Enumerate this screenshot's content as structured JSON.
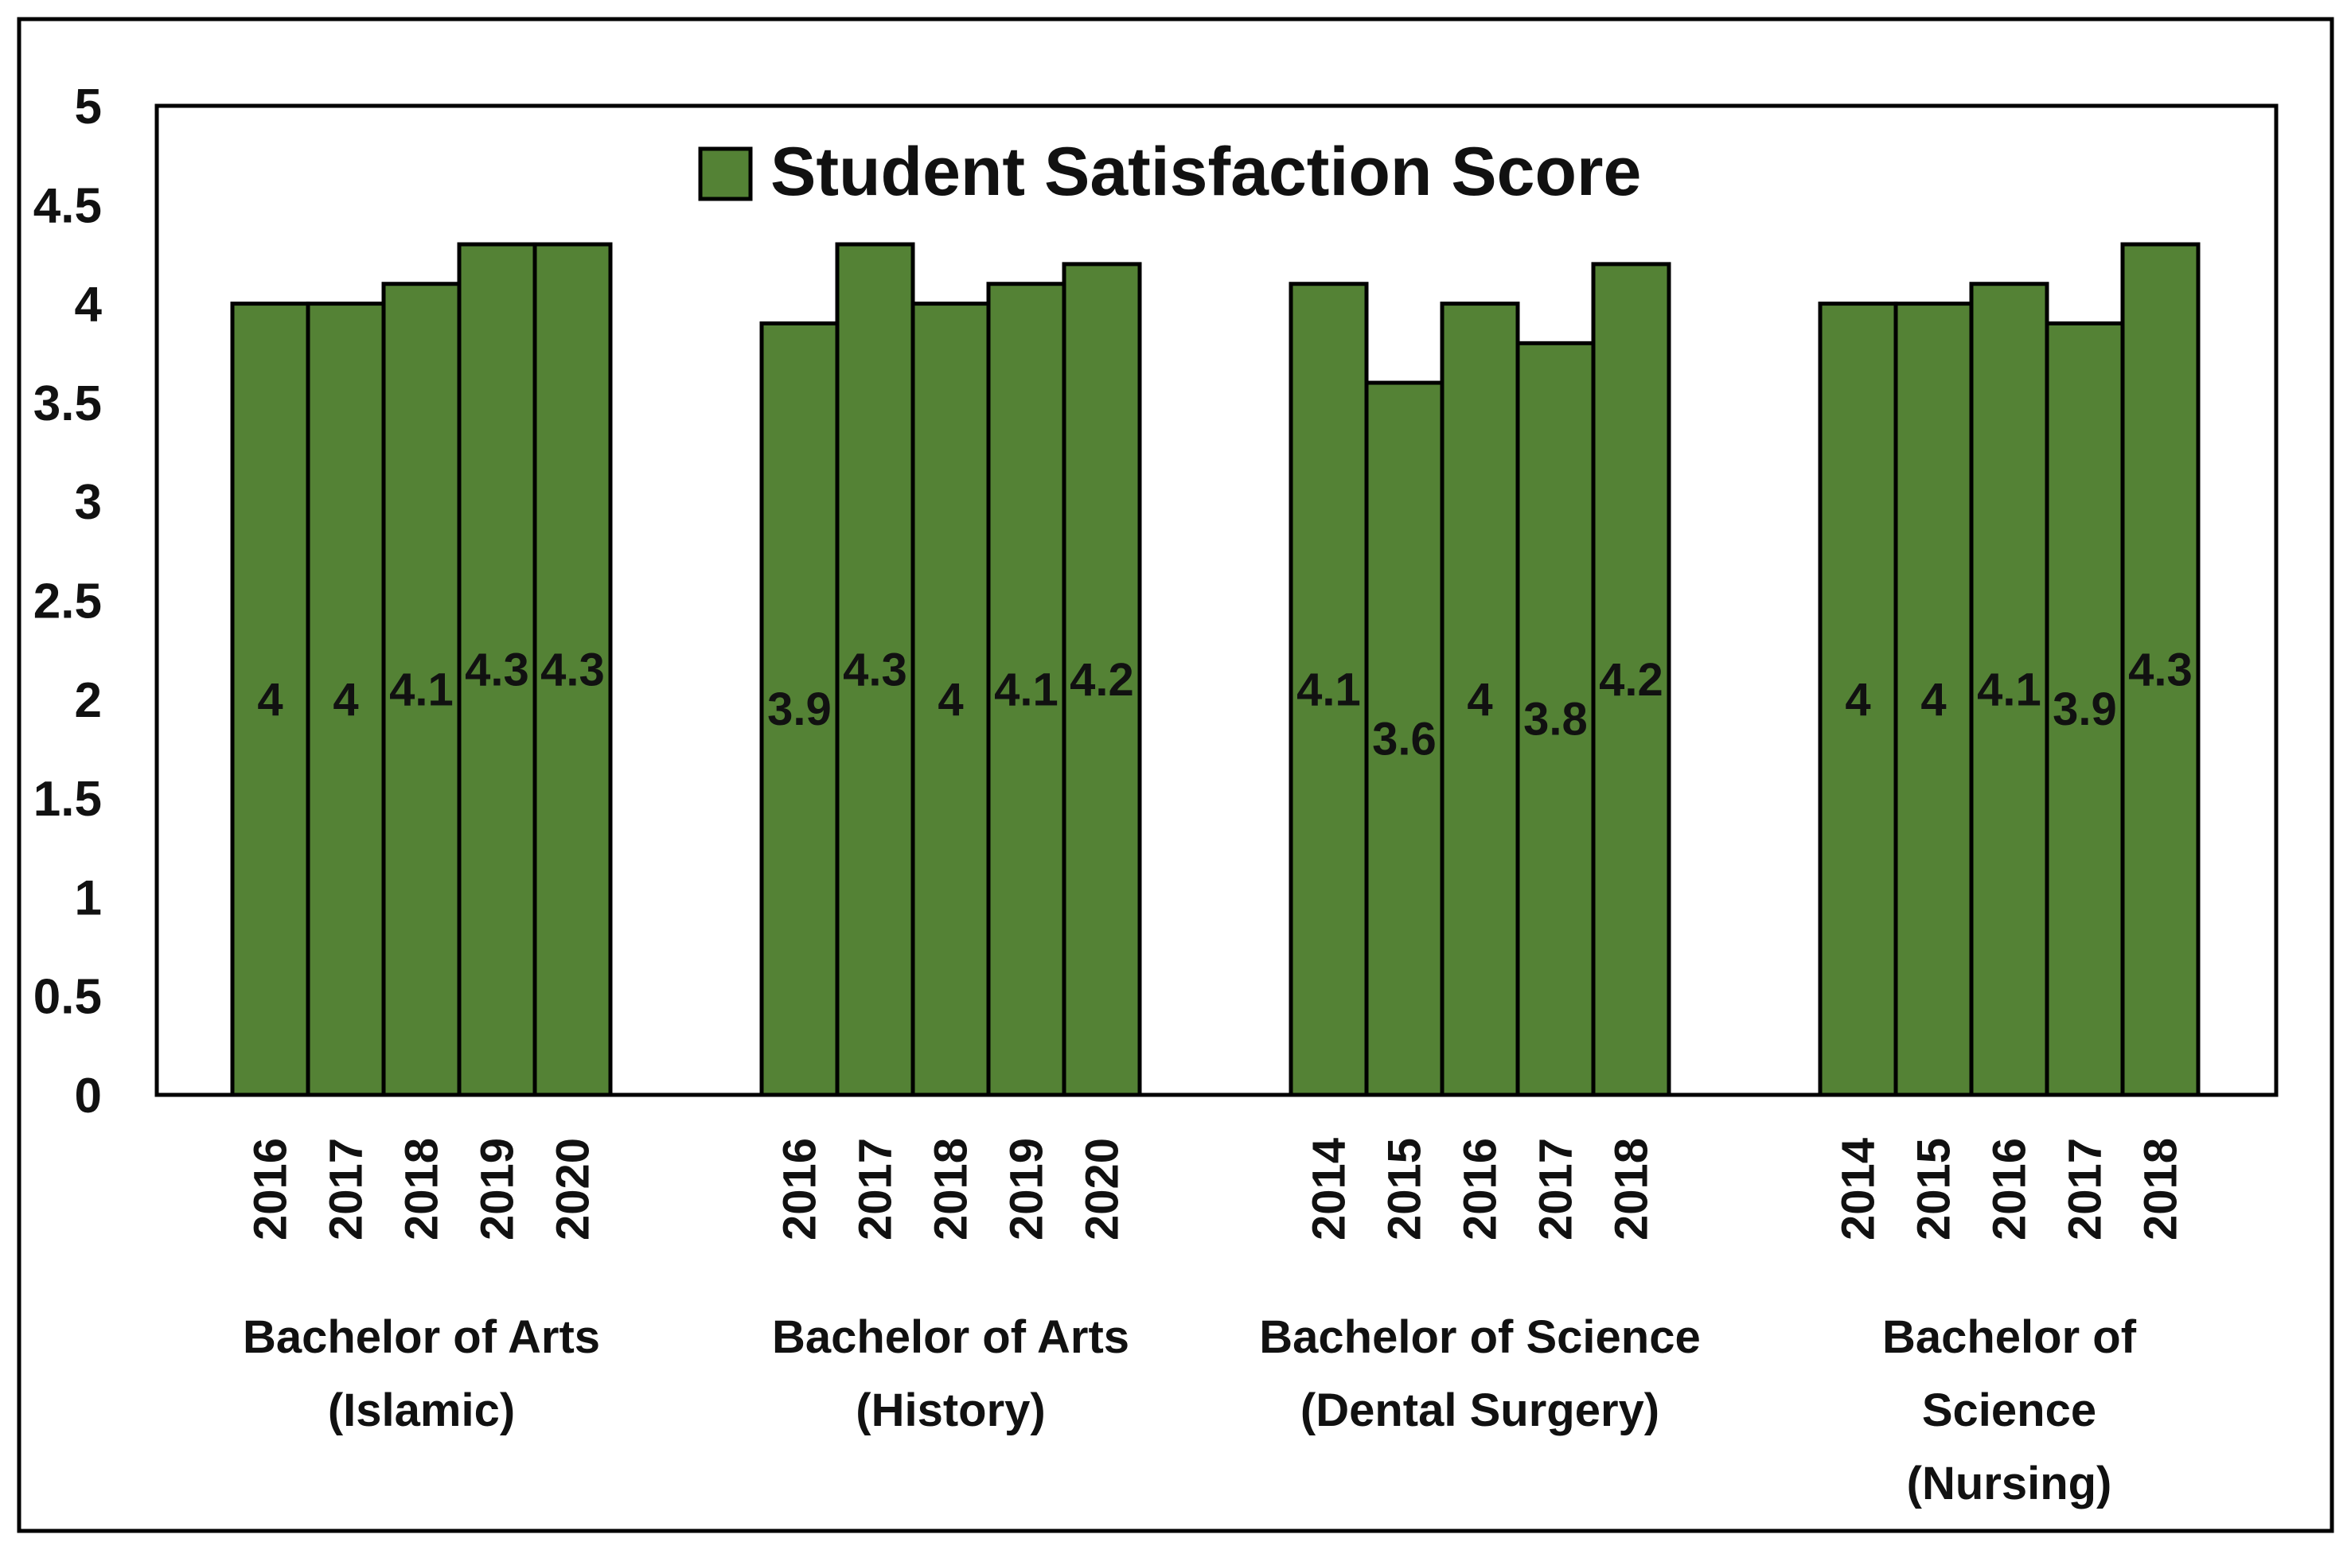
{
  "chart_data": {
    "type": "bar",
    "title": "",
    "xlabel": "",
    "ylabel": "",
    "ylim": [
      0,
      5
    ],
    "yticks": [
      "0",
      "0.5",
      "1",
      "1.5",
      "2",
      "2.5",
      "3",
      "3.5",
      "4",
      "4.5",
      "5"
    ],
    "grid": false,
    "legend": {
      "position": "top-center",
      "entries": [
        "Student Satisfaction Score"
      ]
    },
    "series": [
      {
        "name": "Student Satisfaction Score",
        "color": "#548235",
        "groups": [
          {
            "label_lines": [
              "Bachelor of Arts",
              "(Islamic)"
            ],
            "categories": [
              "2016",
              "2017",
              "2018",
              "2019",
              "2020"
            ],
            "values": [
              4,
              4,
              4.1,
              4.3,
              4.3
            ]
          },
          {
            "label_lines": [
              "Bachelor of Arts",
              "(History)"
            ],
            "categories": [
              "2016",
              "2017",
              "2018",
              "2019",
              "2020"
            ],
            "values": [
              3.9,
              4.3,
              4,
              4.1,
              4.2
            ]
          },
          {
            "label_lines": [
              "Bachelor of Science",
              "(Dental Surgery)"
            ],
            "categories": [
              "2014",
              "2015",
              "2016",
              "2017",
              "2018"
            ],
            "values": [
              4.1,
              3.6,
              4,
              3.8,
              4.2
            ]
          },
          {
            "label_lines": [
              "Bachelor of",
              "Science",
              "(Nursing)"
            ],
            "categories": [
              "2014",
              "2015",
              "2016",
              "2017",
              "2018"
            ],
            "values": [
              4,
              4,
              4.1,
              3.9,
              4.3
            ]
          }
        ]
      }
    ]
  }
}
